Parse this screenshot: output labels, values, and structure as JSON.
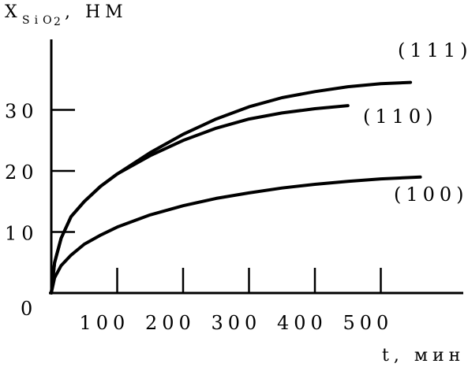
{
  "chart_data": {
    "type": "line",
    "ylabel_main": "X",
    "ylabel_sub": "SiO",
    "ylabel_sub2": "2",
    "ylabel_unit": ", НМ",
    "xlabel": "t, мин",
    "origin_label": "0",
    "xlim": [
      0,
      600
    ],
    "ylim": [
      0,
      40
    ],
    "x_ticks": [
      100,
      200,
      300,
      400,
      500
    ],
    "x_tick_labels": [
      "100",
      "200",
      "300",
      "400",
      "500"
    ],
    "y_ticks": [
      10,
      20,
      30
    ],
    "y_tick_labels": [
      "10",
      "20",
      "30"
    ],
    "grid": false,
    "series": [
      {
        "name": "(111)",
        "x": [
          0,
          5,
          15,
          30,
          50,
          75,
          100,
          150,
          200,
          250,
          300,
          350,
          400,
          450,
          500,
          545
        ],
        "y": [
          0,
          5,
          9,
          12.5,
          15,
          17.5,
          19.5,
          23,
          26,
          28.5,
          30.5,
          32,
          33,
          33.8,
          34.3,
          34.5
        ]
      },
      {
        "name": "(110)",
        "x": [
          0,
          5,
          15,
          30,
          50,
          75,
          100,
          150,
          200,
          250,
          300,
          350,
          400,
          450
        ],
        "y": [
          0,
          5,
          9,
          12.5,
          15,
          17.5,
          19.5,
          22.5,
          25,
          27,
          28.5,
          29.5,
          30.2,
          30.7
        ]
      },
      {
        "name": "(100)",
        "x": [
          0,
          5,
          15,
          30,
          50,
          75,
          100,
          150,
          200,
          250,
          300,
          350,
          400,
          450,
          500,
          560
        ],
        "y": [
          0,
          2.5,
          4.5,
          6.2,
          8,
          9.5,
          10.8,
          12.8,
          14.3,
          15.5,
          16.4,
          17.2,
          17.8,
          18.3,
          18.7,
          19
        ]
      }
    ]
  }
}
